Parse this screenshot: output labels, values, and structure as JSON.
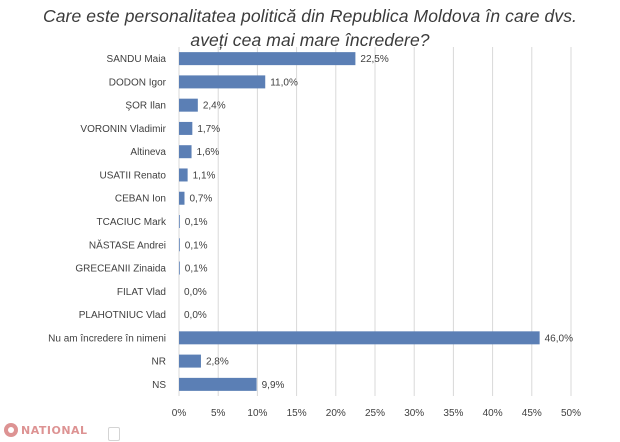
{
  "title_line1": "Care este personalitatea politică din Republica Moldova în care dvs.",
  "title_line2": "aveți cea mai mare încredere?",
  "watermark": "NATIONAL",
  "chart_data": {
    "type": "bar",
    "orientation": "horizontal",
    "categories": [
      "SANDU Maia",
      "DODON Igor",
      "ŞOR Ilan",
      "VORONIN Vladimir",
      "Altineva",
      "USATII Renato",
      "CEBAN Ion",
      "TCACIUC Mark",
      "NĂSTASE Andrei",
      "GRECEANII Zinaida",
      "FILAT Vlad",
      "PLAHOTNIUC Vlad",
      "Nu am încredere în nimeni",
      "NR",
      "NS"
    ],
    "values": [
      22.5,
      11.0,
      2.4,
      1.7,
      1.6,
      1.1,
      0.7,
      0.1,
      0.1,
      0.1,
      0.0,
      0.0,
      46.0,
      2.8,
      9.9
    ],
    "value_labels": [
      "22,5%",
      "11,0%",
      "2,4%",
      "1,7%",
      "1,6%",
      "1,1%",
      "0,7%",
      "0,1%",
      "0,1%",
      "0,1%",
      "0,0%",
      "0,0%",
      "46,0%",
      "2,8%",
      "9,9%"
    ],
    "xlim": [
      0,
      50
    ],
    "x_ticks": [
      "0%",
      "5%",
      "10%",
      "15%",
      "20%",
      "25%",
      "30%",
      "35%",
      "40%",
      "45%",
      "50%"
    ],
    "grid": true,
    "bar_color": "#5b7fb5",
    "title": "Care este personalitatea politică din Republica Moldova în care dvs. aveți cea mai mare încredere?",
    "xlabel": "",
    "ylabel": ""
  }
}
